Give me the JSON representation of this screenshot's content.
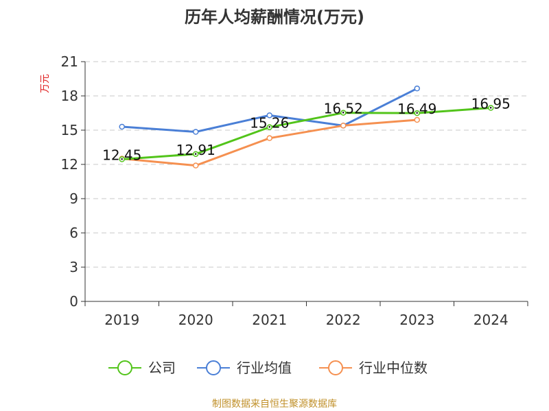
{
  "chart_data": {
    "type": "line",
    "title": "历年人均薪酬情况(万元)",
    "ylabel": "万元",
    "xlabel": "",
    "categories": [
      "2019",
      "2020",
      "2021",
      "2022",
      "2023",
      "2024"
    ],
    "ylim": [
      0,
      21
    ],
    "yticks": [
      0,
      3,
      6,
      9,
      12,
      15,
      18,
      21
    ],
    "grid": "horizontal-dashed",
    "legend_position": "bottom",
    "series": [
      {
        "name": "公司",
        "color": "#52c41a",
        "values": [
          12.45,
          12.91,
          15.26,
          16.52,
          16.49,
          16.95
        ],
        "labels": [
          "12.45",
          "12.91",
          "15.26",
          "16.52",
          "16.49",
          "16.95"
        ]
      },
      {
        "name": "行业均值",
        "color": "#4a7fd6",
        "values": [
          15.3,
          14.85,
          16.3,
          15.4,
          18.65,
          null
        ]
      },
      {
        "name": "行业中位数",
        "color": "#f59050",
        "values": [
          12.5,
          11.9,
          14.3,
          15.4,
          15.9,
          null
        ]
      }
    ]
  },
  "source": "制图数据来自恒生聚源数据库"
}
